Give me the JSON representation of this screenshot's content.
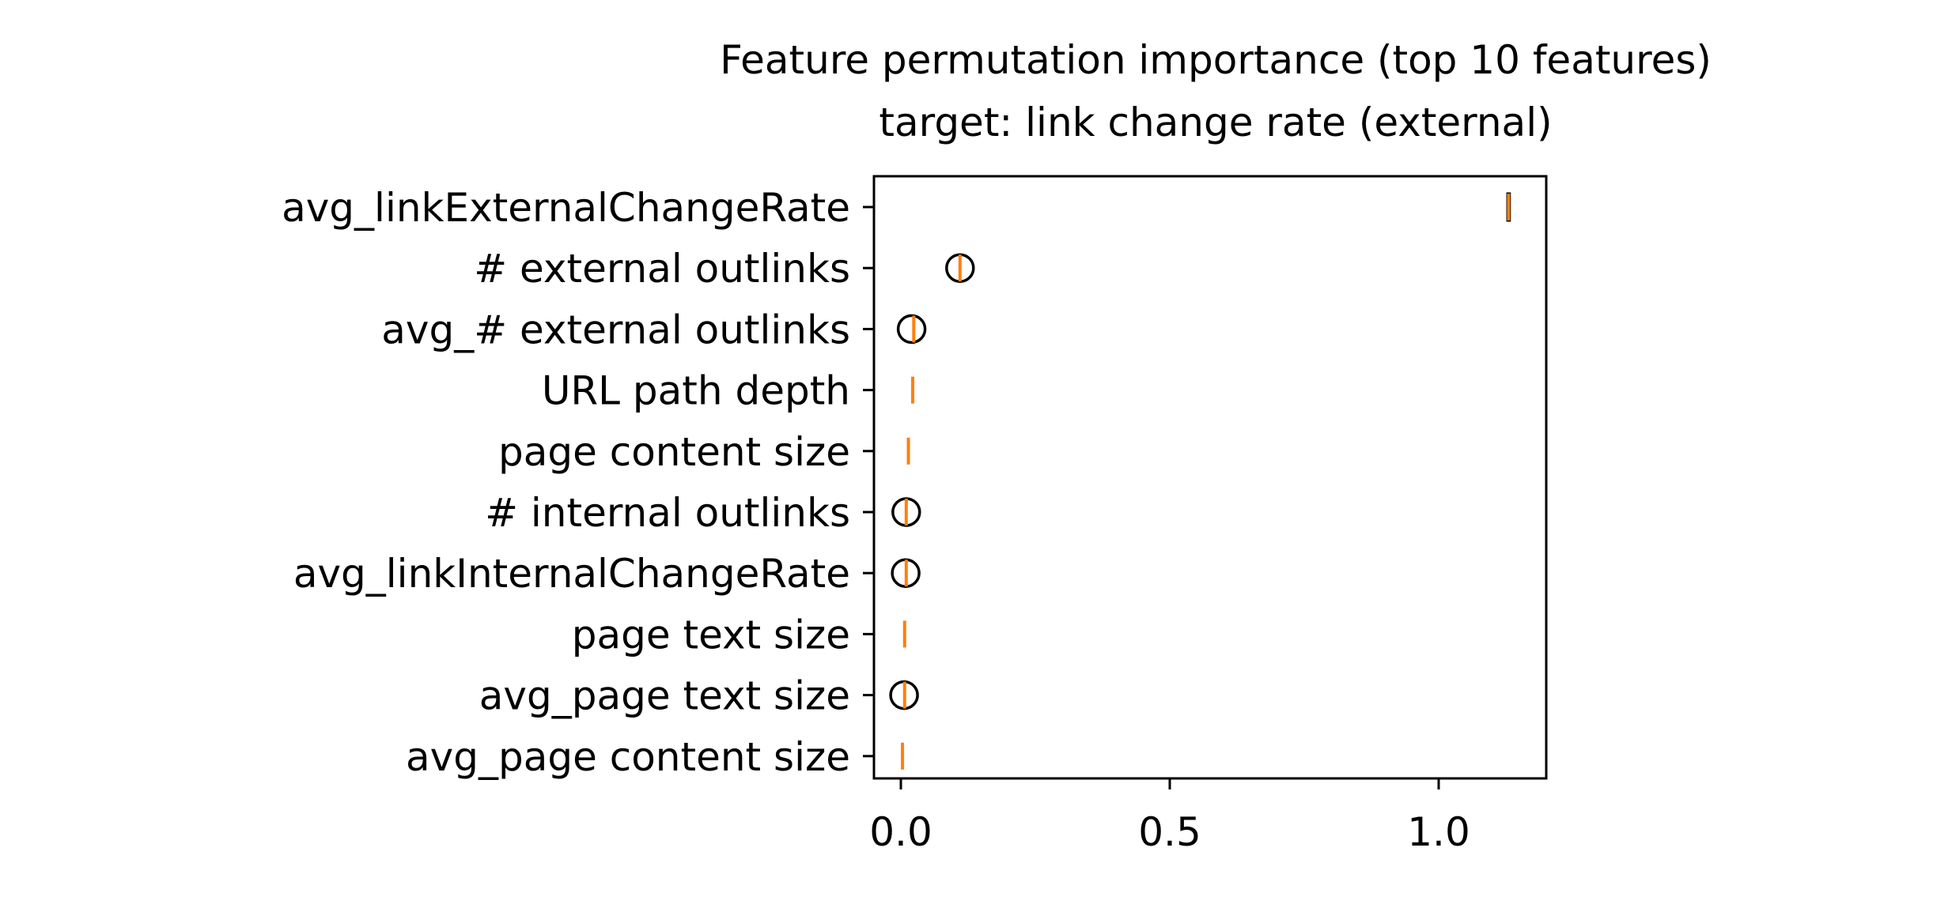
{
  "chart_data": {
    "type": "box",
    "title": "Feature permutation importance (top 10 features)",
    "subtitle": "target: link change rate (external)",
    "xlabel": "",
    "ylabel": "",
    "xlim": [
      -0.05,
      1.2
    ],
    "xticks": [
      0.0,
      0.5,
      1.0
    ],
    "xtick_labels": [
      "0.0",
      "0.5",
      "1.0"
    ],
    "grid": false,
    "colors": {
      "median": "#ff7f0e",
      "box": "#000000",
      "outlier": "#000000"
    },
    "features": [
      {
        "label": "avg_linkExternalChangeRate",
        "median": 1.13,
        "q1": 1.128,
        "q3": 1.132,
        "outliers": []
      },
      {
        "label": "# external outlinks",
        "median": 0.11,
        "q1": 0.11,
        "q3": 0.11,
        "outliers": [
          0.11
        ]
      },
      {
        "label": "avg_# external outlinks",
        "median": 0.024,
        "q1": 0.024,
        "q3": 0.024,
        "outliers": [
          0.02
        ]
      },
      {
        "label": "URL path depth",
        "median": 0.022,
        "q1": 0.022,
        "q3": 0.022,
        "outliers": []
      },
      {
        "label": "page content size",
        "median": 0.014,
        "q1": 0.014,
        "q3": 0.014,
        "outliers": []
      },
      {
        "label": "# internal outlinks",
        "median": 0.01,
        "q1": 0.01,
        "q3": 0.01,
        "outliers": [
          0.01
        ]
      },
      {
        "label": "avg_linkInternalChangeRate",
        "median": 0.01,
        "q1": 0.01,
        "q3": 0.01,
        "outliers": [
          0.009
        ]
      },
      {
        "label": "page text size",
        "median": 0.007,
        "q1": 0.007,
        "q3": 0.007,
        "outliers": []
      },
      {
        "label": "avg_page text size",
        "median": 0.007,
        "q1": 0.007,
        "q3": 0.007,
        "outliers": [
          0.006
        ]
      },
      {
        "label": "avg_page content size",
        "median": 0.003,
        "q1": 0.003,
        "q3": 0.003,
        "outliers": []
      }
    ]
  }
}
